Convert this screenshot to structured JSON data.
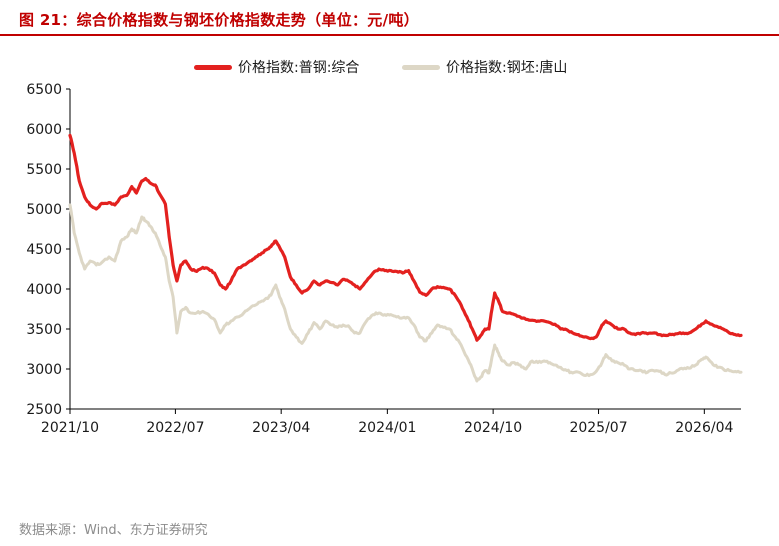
{
  "header": {
    "title": "图 21：综合价格指数与钢坯价格指数走势（单位：元/吨）"
  },
  "footer": {
    "source": "数据来源：Wind、东方证券研究"
  },
  "chart_data": {
    "type": "line",
    "title": "图 21：综合价格指数与钢坯价格指数走势（单位：元/吨）",
    "xlabel": "",
    "ylabel": "",
    "ylim": [
      2500,
      6500
    ],
    "yticks": [
      "6500",
      "6000",
      "5500",
      "5000",
      "4500",
      "4000",
      "3500",
      "3000",
      "2500"
    ],
    "xticks": [
      "2021/10",
      "2022/07",
      "2023/04",
      "2024/01",
      "2024/10",
      "2025/07",
      "2026/04"
    ],
    "grid": false,
    "legend_position": "top-center",
    "series": [
      {
        "name": "价格指数:普钢:综合",
        "color": "#e3211f",
        "points": [
          [
            "2021-10-01",
            5920
          ],
          [
            "2021-10-12",
            5700
          ],
          [
            "2021-10-25",
            5350
          ],
          [
            "2021-11-08",
            5150
          ],
          [
            "2021-11-22",
            5050
          ],
          [
            "2021-12-08",
            5000
          ],
          [
            "2021-12-22",
            5070
          ],
          [
            "2022-01-10",
            5080
          ],
          [
            "2022-01-25",
            5050
          ],
          [
            "2022-02-10",
            5150
          ],
          [
            "2022-02-25",
            5170
          ],
          [
            "2022-03-10",
            5280
          ],
          [
            "2022-03-22",
            5200
          ],
          [
            "2022-04-05",
            5350
          ],
          [
            "2022-04-15",
            5380
          ],
          [
            "2022-04-28",
            5320
          ],
          [
            "2022-05-10",
            5300
          ],
          [
            "2022-05-22",
            5180
          ],
          [
            "2022-06-05",
            5060
          ],
          [
            "2022-06-15",
            4650
          ],
          [
            "2022-06-25",
            4300
          ],
          [
            "2022-07-05",
            4100
          ],
          [
            "2022-07-15",
            4300
          ],
          [
            "2022-07-28",
            4350
          ],
          [
            "2022-08-10",
            4250
          ],
          [
            "2022-08-25",
            4220
          ],
          [
            "2022-09-10",
            4270
          ],
          [
            "2022-09-25",
            4250
          ],
          [
            "2022-10-10",
            4200
          ],
          [
            "2022-10-25",
            4050
          ],
          [
            "2022-11-08",
            4000
          ],
          [
            "2022-11-22",
            4100
          ],
          [
            "2022-12-08",
            4250
          ],
          [
            "2022-12-25",
            4300
          ],
          [
            "2023-01-10",
            4350
          ],
          [
            "2023-01-25",
            4400
          ],
          [
            "2023-02-10",
            4450
          ],
          [
            "2023-02-25",
            4500
          ],
          [
            "2023-03-08",
            4550
          ],
          [
            "2023-03-18",
            4600
          ],
          [
            "2023-03-28",
            4520
          ],
          [
            "2023-04-10",
            4400
          ],
          [
            "2023-04-25",
            4150
          ],
          [
            "2023-05-10",
            4050
          ],
          [
            "2023-05-25",
            3950
          ],
          [
            "2023-06-10",
            4000
          ],
          [
            "2023-06-25",
            4100
          ],
          [
            "2023-07-10",
            4050
          ],
          [
            "2023-07-25",
            4100
          ],
          [
            "2023-08-10",
            4080
          ],
          [
            "2023-08-25",
            4050
          ],
          [
            "2023-09-08",
            4120
          ],
          [
            "2023-09-22",
            4100
          ],
          [
            "2023-10-08",
            4050
          ],
          [
            "2023-10-22",
            4000
          ],
          [
            "2023-11-08",
            4100
          ],
          [
            "2023-11-25",
            4200
          ],
          [
            "2023-12-10",
            4250
          ],
          [
            "2023-12-25",
            4230
          ],
          [
            "2024-01-10",
            4230
          ],
          [
            "2024-01-25",
            4220
          ],
          [
            "2024-02-10",
            4200
          ],
          [
            "2024-02-25",
            4230
          ],
          [
            "2024-03-10",
            4100
          ],
          [
            "2024-03-25",
            3960
          ],
          [
            "2024-04-10",
            3920
          ],
          [
            "2024-04-25",
            4000
          ],
          [
            "2024-05-10",
            4030
          ],
          [
            "2024-05-25",
            4020
          ],
          [
            "2024-06-10",
            4000
          ],
          [
            "2024-06-25",
            3920
          ],
          [
            "2024-07-10",
            3800
          ],
          [
            "2024-07-25",
            3650
          ],
          [
            "2024-08-08",
            3500
          ],
          [
            "2024-08-20",
            3360
          ],
          [
            "2024-08-30",
            3420
          ],
          [
            "2024-09-10",
            3500
          ],
          [
            "2024-09-20",
            3500
          ],
          [
            "2024-09-28",
            3750
          ],
          [
            "2024-10-05",
            3950
          ],
          [
            "2024-10-15",
            3850
          ],
          [
            "2024-10-25",
            3720
          ],
          [
            "2024-11-10",
            3700
          ],
          [
            "2024-11-25",
            3680
          ],
          [
            "2024-12-10",
            3650
          ],
          [
            "2024-12-25",
            3620
          ],
          [
            "2025-01-10",
            3610
          ],
          [
            "2025-01-25",
            3600
          ],
          [
            "2025-02-10",
            3600
          ],
          [
            "2025-02-25",
            3580
          ],
          [
            "2025-03-10",
            3560
          ],
          [
            "2025-03-25",
            3500
          ],
          [
            "2025-04-10",
            3490
          ],
          [
            "2025-04-25",
            3450
          ],
          [
            "2025-05-10",
            3430
          ],
          [
            "2025-05-25",
            3400
          ],
          [
            "2025-06-10",
            3380
          ],
          [
            "2025-06-25",
            3400
          ],
          [
            "2025-07-10",
            3550
          ],
          [
            "2025-07-20",
            3600
          ],
          [
            "2025-08-05",
            3550
          ],
          [
            "2025-08-20",
            3500
          ],
          [
            "2025-09-05",
            3500
          ],
          [
            "2025-09-20",
            3450
          ],
          [
            "2025-10-05",
            3430
          ],
          [
            "2025-10-20",
            3450
          ],
          [
            "2025-11-05",
            3440
          ],
          [
            "2025-11-20",
            3450
          ],
          [
            "2025-12-05",
            3430
          ],
          [
            "2025-12-20",
            3420
          ],
          [
            "2026-01-05",
            3430
          ],
          [
            "2026-01-20",
            3440
          ],
          [
            "2026-02-05",
            3450
          ],
          [
            "2026-02-20",
            3450
          ],
          [
            "2026-03-10",
            3500
          ],
          [
            "2026-03-25",
            3560
          ],
          [
            "2026-04-05",
            3600
          ],
          [
            "2026-04-20",
            3560
          ],
          [
            "2026-05-05",
            3530
          ],
          [
            "2026-05-20",
            3500
          ],
          [
            "2026-06-05",
            3450
          ],
          [
            "2026-06-20",
            3430
          ],
          [
            "2026-07-05",
            3420
          ]
        ]
      },
      {
        "name": "价格指数:钢坯:唐山",
        "color": "#ddd7c6",
        "points": [
          [
            "2021-10-01",
            5050
          ],
          [
            "2021-10-12",
            4700
          ],
          [
            "2021-10-25",
            4450
          ],
          [
            "2021-11-08",
            4250
          ],
          [
            "2021-11-22",
            4350
          ],
          [
            "2021-12-08",
            4300
          ],
          [
            "2021-12-22",
            4330
          ],
          [
            "2022-01-10",
            4400
          ],
          [
            "2022-01-25",
            4350
          ],
          [
            "2022-02-10",
            4600
          ],
          [
            "2022-02-25",
            4650
          ],
          [
            "2022-03-10",
            4750
          ],
          [
            "2022-03-22",
            4700
          ],
          [
            "2022-04-05",
            4900
          ],
          [
            "2022-04-15",
            4850
          ],
          [
            "2022-04-28",
            4780
          ],
          [
            "2022-05-10",
            4700
          ],
          [
            "2022-05-22",
            4550
          ],
          [
            "2022-06-05",
            4400
          ],
          [
            "2022-06-15",
            4100
          ],
          [
            "2022-06-25",
            3900
          ],
          [
            "2022-07-05",
            3450
          ],
          [
            "2022-07-15",
            3720
          ],
          [
            "2022-07-28",
            3770
          ],
          [
            "2022-08-10",
            3700
          ],
          [
            "2022-08-25",
            3700
          ],
          [
            "2022-09-10",
            3720
          ],
          [
            "2022-09-25",
            3680
          ],
          [
            "2022-10-10",
            3620
          ],
          [
            "2022-10-25",
            3450
          ],
          [
            "2022-11-08",
            3550
          ],
          [
            "2022-11-22",
            3600
          ],
          [
            "2022-12-08",
            3650
          ],
          [
            "2022-12-25",
            3700
          ],
          [
            "2023-01-10",
            3760
          ],
          [
            "2023-01-25",
            3800
          ],
          [
            "2023-02-10",
            3850
          ],
          [
            "2023-02-25",
            3880
          ],
          [
            "2023-03-08",
            3950
          ],
          [
            "2023-03-18",
            4050
          ],
          [
            "2023-03-28",
            3900
          ],
          [
            "2023-04-10",
            3750
          ],
          [
            "2023-04-25",
            3500
          ],
          [
            "2023-05-10",
            3400
          ],
          [
            "2023-05-25",
            3320
          ],
          [
            "2023-06-10",
            3450
          ],
          [
            "2023-06-25",
            3580
          ],
          [
            "2023-07-10",
            3500
          ],
          [
            "2023-07-25",
            3600
          ],
          [
            "2023-08-10",
            3550
          ],
          [
            "2023-08-25",
            3520
          ],
          [
            "2023-09-08",
            3550
          ],
          [
            "2023-09-22",
            3540
          ],
          [
            "2023-10-08",
            3450
          ],
          [
            "2023-10-22",
            3450
          ],
          [
            "2023-11-08",
            3600
          ],
          [
            "2023-11-25",
            3680
          ],
          [
            "2023-12-10",
            3700
          ],
          [
            "2023-12-25",
            3680
          ],
          [
            "2024-01-10",
            3680
          ],
          [
            "2024-01-25",
            3650
          ],
          [
            "2024-02-10",
            3640
          ],
          [
            "2024-02-25",
            3640
          ],
          [
            "2024-03-10",
            3550
          ],
          [
            "2024-03-25",
            3400
          ],
          [
            "2024-04-10",
            3350
          ],
          [
            "2024-04-25",
            3450
          ],
          [
            "2024-05-10",
            3550
          ],
          [
            "2024-05-25",
            3520
          ],
          [
            "2024-06-10",
            3500
          ],
          [
            "2024-06-25",
            3400
          ],
          [
            "2024-07-10",
            3300
          ],
          [
            "2024-07-25",
            3150
          ],
          [
            "2024-08-08",
            3000
          ],
          [
            "2024-08-20",
            2850
          ],
          [
            "2024-08-30",
            2900
          ],
          [
            "2024-09-10",
            2980
          ],
          [
            "2024-09-20",
            2950
          ],
          [
            "2024-09-28",
            3150
          ],
          [
            "2024-10-05",
            3300
          ],
          [
            "2024-10-15",
            3200
          ],
          [
            "2024-10-25",
            3100
          ],
          [
            "2024-11-10",
            3050
          ],
          [
            "2024-11-25",
            3080
          ],
          [
            "2024-12-10",
            3050
          ],
          [
            "2024-12-25",
            3000
          ],
          [
            "2025-01-10",
            3100
          ],
          [
            "2025-01-25",
            3080
          ],
          [
            "2025-02-10",
            3100
          ],
          [
            "2025-02-25",
            3080
          ],
          [
            "2025-03-10",
            3050
          ],
          [
            "2025-03-25",
            3020
          ],
          [
            "2025-04-10",
            2980
          ],
          [
            "2025-04-25",
            2950
          ],
          [
            "2025-05-10",
            2960
          ],
          [
            "2025-05-25",
            2920
          ],
          [
            "2025-06-10",
            2930
          ],
          [
            "2025-06-25",
            2970
          ],
          [
            "2025-07-10",
            3080
          ],
          [
            "2025-07-20",
            3180
          ],
          [
            "2025-08-05",
            3100
          ],
          [
            "2025-08-20",
            3080
          ],
          [
            "2025-09-05",
            3050
          ],
          [
            "2025-09-20",
            3000
          ],
          [
            "2025-10-05",
            2980
          ],
          [
            "2025-10-20",
            2980
          ],
          [
            "2025-11-05",
            2960
          ],
          [
            "2025-11-20",
            2980
          ],
          [
            "2025-12-05",
            2970
          ],
          [
            "2025-12-20",
            2930
          ],
          [
            "2026-01-05",
            2950
          ],
          [
            "2026-01-20",
            2980
          ],
          [
            "2026-02-05",
            3000
          ],
          [
            "2026-02-20",
            3010
          ],
          [
            "2026-03-10",
            3050
          ],
          [
            "2026-03-25",
            3120
          ],
          [
            "2026-04-05",
            3150
          ],
          [
            "2026-04-20",
            3080
          ],
          [
            "2026-05-05",
            3020
          ],
          [
            "2026-05-20",
            3000
          ],
          [
            "2026-06-05",
            2980
          ],
          [
            "2026-06-20",
            2970
          ],
          [
            "2026-07-05",
            2960
          ]
        ]
      }
    ]
  }
}
